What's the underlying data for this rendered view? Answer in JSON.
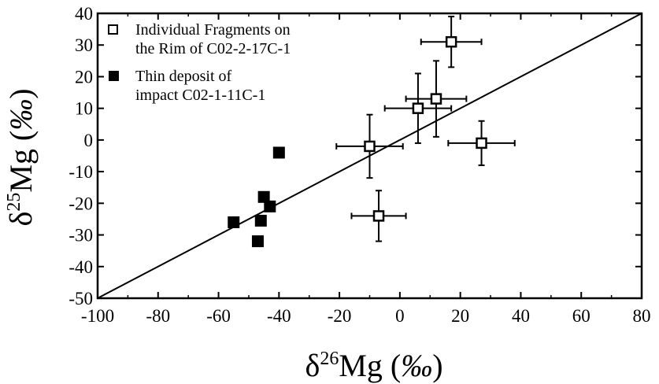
{
  "chart_data": {
    "type": "scatter",
    "title": "",
    "xlabel": {
      "prefix": "δ",
      "sup": "26",
      "main": "Mg (",
      "italic": "‰",
      "suffix": ")"
    },
    "ylabel": {
      "prefix": "δ",
      "sup": "25",
      "main": "Mg (",
      "italic": "‰",
      "suffix": ")"
    },
    "xlim": [
      -100,
      80
    ],
    "ylim": [
      -50,
      40
    ],
    "xticks": [
      -100,
      -80,
      -60,
      -40,
      -20,
      0,
      20,
      40,
      60,
      80
    ],
    "yticks": [
      40,
      30,
      20,
      10,
      0,
      -10,
      -20,
      -30,
      -40,
      -50
    ],
    "grid": false,
    "legend_position": "top-left",
    "reference_line": {
      "x": [
        -100,
        80
      ],
      "y": [
        -50,
        40
      ]
    },
    "series": [
      {
        "name_lines": [
          "Individual Fragments on",
          "the Rim of C02-2-17C-1"
        ],
        "marker": "open-square",
        "points": [
          {
            "x": 17,
            "y": 31,
            "xerr": 10,
            "yerr": 8
          },
          {
            "x": 12,
            "y": 13,
            "xerr": 10,
            "yerr": 12
          },
          {
            "x": 6,
            "y": 10,
            "xerr": 11,
            "yerr": 11
          },
          {
            "x": -10,
            "y": -2,
            "xerr": 11,
            "yerr": 10
          },
          {
            "x": 27,
            "y": -1,
            "xerr": 11,
            "yerr": 7
          },
          {
            "x": -7,
            "y": -24,
            "xerr": 9,
            "yerr": 8
          }
        ]
      },
      {
        "name_lines": [
          "Thin deposit of",
          "impact C02-1-11C-1"
        ],
        "marker": "filled-square",
        "points": [
          {
            "x": -40,
            "y": -4
          },
          {
            "x": -45,
            "y": -18
          },
          {
            "x": -43,
            "y": -21
          },
          {
            "x": -46,
            "y": -25.5
          },
          {
            "x": -55,
            "y": -26
          },
          {
            "x": -47,
            "y": -32
          }
        ]
      }
    ]
  }
}
